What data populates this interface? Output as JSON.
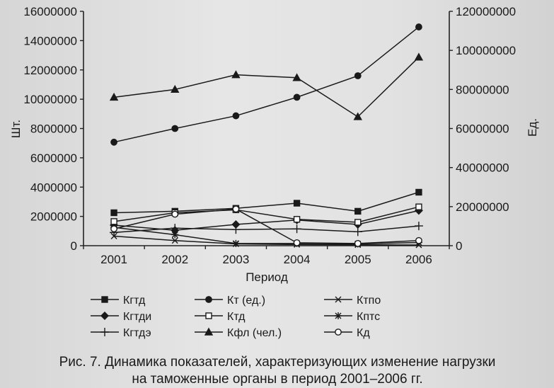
{
  "chart_data": {
    "type": "line",
    "x": [
      "2001",
      "2002",
      "2003",
      "2004",
      "2005",
      "2006"
    ],
    "xlabel": "Период",
    "ylabel_left": "Шт.",
    "ylabel_right": "Ед.",
    "ylim_left": [
      0,
      16000000
    ],
    "ylim_right": [
      0,
      120000000
    ],
    "yticks_left": [
      "0",
      "2000000",
      "4000000",
      "6000000",
      "8000000",
      "10000000",
      "12000000",
      "14000000",
      "16000000"
    ],
    "yticks_right": [
      "0",
      "20000000",
      "40000000",
      "60000000",
      "80000000",
      "100000000",
      "120000000"
    ],
    "legend_placement": "bottom",
    "series": [
      {
        "name": "Кгтд",
        "axis": "left",
        "marker": "square",
        "values": [
          2250000,
          2350000,
          2550000,
          2900000,
          2350000,
          3650000
        ]
      },
      {
        "name": "Кгтди",
        "axis": "left",
        "marker": "diamond",
        "values": [
          1400000,
          1050000,
          1450000,
          1750000,
          1450000,
          2400000
        ]
      },
      {
        "name": "Кгтдэ",
        "axis": "left",
        "marker": "plus",
        "values": [
          900000,
          1200000,
          1100000,
          1150000,
          950000,
          1350000
        ]
      },
      {
        "name": "Кт (ед.)",
        "axis": "right",
        "marker": "circle",
        "values": [
          53000000,
          60000000,
          66500000,
          76000000,
          87000000,
          112000000
        ]
      },
      {
        "name": "Ктд",
        "axis": "left",
        "marker": "square-open",
        "values": [
          1650000,
          2250000,
          2450000,
          1800000,
          1600000,
          2650000
        ]
      },
      {
        "name": "Кфл (чел.)",
        "axis": "right",
        "marker": "triangle",
        "values": [
          76000000,
          80000000,
          87500000,
          86000000,
          66000000,
          96500000
        ]
      },
      {
        "name": "Ктпо",
        "axis": "left",
        "marker": "x",
        "values": [
          650000,
          350000,
          120000,
          80000,
          60000,
          50000
        ]
      },
      {
        "name": "Кптс",
        "axis": "left",
        "marker": "star",
        "values": [
          1250000,
          750000,
          150000,
          150000,
          120000,
          220000
        ]
      },
      {
        "name": "Кд",
        "axis": "left",
        "marker": "circle-open",
        "values": [
          1150000,
          2150000,
          2500000,
          200000,
          150000,
          350000
        ]
      }
    ]
  },
  "caption": {
    "line1": "Рис. 7. Динамика показателей, характеризующих изменение нагрузки",
    "line2": "на таможенные органы в период 2001–2006 гг."
  }
}
